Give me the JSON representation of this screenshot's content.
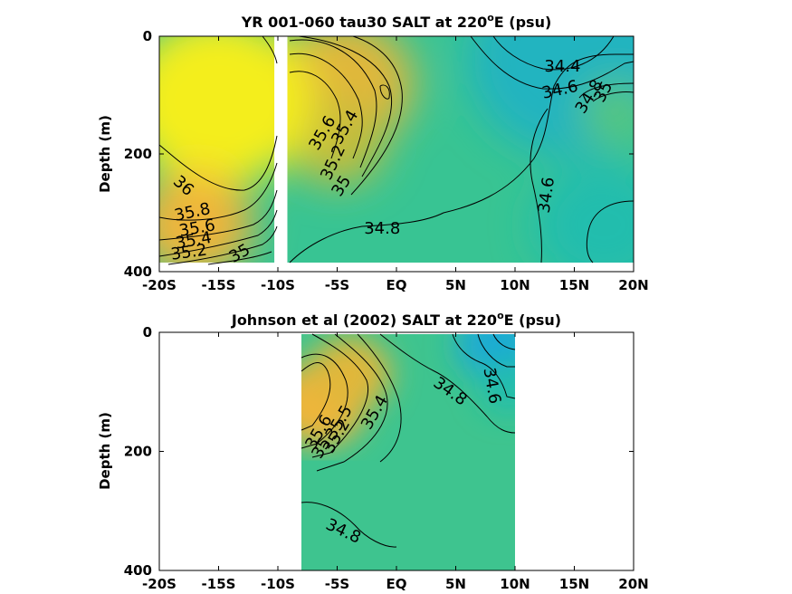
{
  "colors": {
    "background": "#ffffff",
    "colormap": [
      "#1aa2e6",
      "#26c2a2",
      "#6fc868",
      "#c3bd3a",
      "#f4b43a",
      "#f4ee1e"
    ]
  },
  "chart_data": [
    {
      "type": "heatmap",
      "title_main": "YR 001-060 tau30 SALT at 220",
      "title_sup": "o",
      "title_end": "E (psu)",
      "ylabel": "Depth (m)",
      "xlim": [
        -20,
        20
      ],
      "ylim": [
        0,
        400
      ],
      "y_reversed": true,
      "xticks": [
        -20,
        -15,
        -10,
        -5,
        0,
        5,
        10,
        15,
        20
      ],
      "xtick_labels": [
        "-20S",
        "-15S",
        "-10S",
        "-5S",
        "EQ",
        "5N",
        "10N",
        "15N",
        "20N"
      ],
      "yticks": [
        0,
        200,
        400
      ],
      "ytick_labels": [
        "0",
        "200",
        "400"
      ],
      "data_extent": {
        "x": [
          -20,
          20
        ],
        "y": [
          0,
          380
        ]
      },
      "gap_x": [
        -10.3,
        -9.2
      ],
      "fields": [
        {
          "value": 34.5,
          "x": 15,
          "y": 40,
          "radius": 9
        },
        {
          "value": 34.6,
          "x": 17.5,
          "y": 320,
          "radius": 6
        },
        {
          "value": 34.9,
          "x": 18.5,
          "y": 130,
          "radius": 3
        },
        {
          "value": 35.6,
          "x": -4.5,
          "y": 80,
          "radius": 6
        },
        {
          "value": 35.4,
          "x": -5,
          "y": 180,
          "radius": 4
        },
        {
          "value": 36.3,
          "x": -15,
          "y": 110,
          "radius": 8
        },
        {
          "value": 35.7,
          "x": -17,
          "y": 320,
          "radius": 5
        }
      ],
      "background_value": 34.75,
      "contour_labels": [
        {
          "text": "34.4",
          "x": 14,
          "y": 52,
          "angle": 0
        },
        {
          "text": "34.6",
          "x": 13.8,
          "y": 92,
          "angle": -12
        },
        {
          "text": "34.8",
          "x": 16.3,
          "y": 103,
          "angle": -58
        },
        {
          "text": "35",
          "x": 17.5,
          "y": 95,
          "angle": -62
        },
        {
          "text": "35.6",
          "x": -6.2,
          "y": 165,
          "angle": -60
        },
        {
          "text": "35.4",
          "x": -4.3,
          "y": 155,
          "angle": -60
        },
        {
          "text": "35.2",
          "x": -5.3,
          "y": 215,
          "angle": -65
        },
        {
          "text": "35",
          "x": -4.6,
          "y": 255,
          "angle": -58
        },
        {
          "text": "36",
          "x": -18,
          "y": 255,
          "angle": 42
        },
        {
          "text": "35.8",
          "x": -17.2,
          "y": 300,
          "angle": -12
        },
        {
          "text": "35.6",
          "x": -16.8,
          "y": 327,
          "angle": -10
        },
        {
          "text": "35.4",
          "x": -17.1,
          "y": 348,
          "angle": -10
        },
        {
          "text": "35.2",
          "x": -17.5,
          "y": 368,
          "angle": -8
        },
        {
          "text": "35",
          "x": -13.2,
          "y": 370,
          "angle": -30
        },
        {
          "text": "34.8",
          "x": -1.2,
          "y": 328,
          "angle": 0
        },
        {
          "text": "34.6",
          "x": 12.7,
          "y": 270,
          "angle": -82
        }
      ]
    },
    {
      "type": "heatmap",
      "title_main": "Johnson et al (2002) SALT at 220",
      "title_sup": "o",
      "title_end": "E (psu)",
      "ylabel": "Depth (m)",
      "xlim": [
        -20,
        20
      ],
      "ylim": [
        0,
        400
      ],
      "y_reversed": true,
      "xticks": [
        -20,
        -15,
        -10,
        -5,
        0,
        5,
        10,
        15,
        20
      ],
      "xtick_labels": [
        "-20S",
        "-15S",
        "-10S",
        "-5S",
        "EQ",
        "5N",
        "10N",
        "15N",
        "20N"
      ],
      "yticks": [
        0,
        200,
        400
      ],
      "ytick_labels": [
        "0",
        "200",
        "400"
      ],
      "data_extent": {
        "x": [
          -8,
          10
        ],
        "y": [
          0,
          400
        ]
      },
      "gap_x": null,
      "fields": [
        {
          "value": 34.4,
          "x": 8.5,
          "y": 20,
          "radius": 3.5
        },
        {
          "value": 34.6,
          "x": 9.5,
          "y": 90,
          "radius": 2.5
        },
        {
          "value": 35.7,
          "x": -6.5,
          "y": 120,
          "radius": 4
        },
        {
          "value": 35.6,
          "x": -4,
          "y": 70,
          "radius": 3.5
        }
      ],
      "background_value": 34.78,
      "contour_labels": [
        {
          "text": "35.6",
          "x": -6.5,
          "y": 168,
          "angle": -60
        },
        {
          "text": "35.5",
          "x": -4.8,
          "y": 152,
          "angle": -60
        },
        {
          "text": "35.2",
          "x": -5,
          "y": 175,
          "angle": -60
        },
        {
          "text": "35",
          "x": -6.3,
          "y": 195,
          "angle": -60
        },
        {
          "text": "35.4",
          "x": -1.8,
          "y": 135,
          "angle": -60
        },
        {
          "text": "34.8",
          "x": 4.5,
          "y": 100,
          "angle": 35
        },
        {
          "text": "34.6",
          "x": 8,
          "y": 90,
          "angle": 80
        },
        {
          "text": "34.8",
          "x": -4.5,
          "y": 335,
          "angle": 25
        }
      ]
    }
  ]
}
